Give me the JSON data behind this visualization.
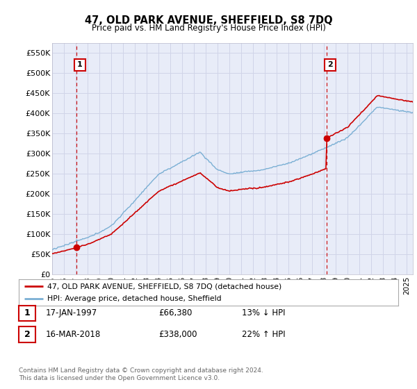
{
  "title": "47, OLD PARK AVENUE, SHEFFIELD, S8 7DQ",
  "subtitle": "Price paid vs. HM Land Registry's House Price Index (HPI)",
  "ylim": [
    0,
    575000
  ],
  "yticks": [
    0,
    50000,
    100000,
    150000,
    200000,
    250000,
    300000,
    350000,
    400000,
    450000,
    500000,
    550000
  ],
  "ytick_labels": [
    "£0",
    "£50K",
    "£100K",
    "£150K",
    "£200K",
    "£250K",
    "£300K",
    "£350K",
    "£400K",
    "£450K",
    "£500K",
    "£550K"
  ],
  "xlim_start": 1995.0,
  "xlim_end": 2025.5,
  "xticks": [
    1995,
    1996,
    1997,
    1998,
    1999,
    2000,
    2001,
    2002,
    2003,
    2004,
    2005,
    2006,
    2007,
    2008,
    2009,
    2010,
    2011,
    2012,
    2013,
    2014,
    2015,
    2016,
    2017,
    2018,
    2019,
    2020,
    2021,
    2022,
    2023,
    2024,
    2025
  ],
  "sale1_x": 1997.04,
  "sale1_y": 66380,
  "sale1_label": "1",
  "sale2_x": 2018.21,
  "sale2_y": 338000,
  "sale2_label": "2",
  "property_line_color": "#cc0000",
  "hpi_line_color": "#7aafd4",
  "grid_color": "#d0d4e8",
  "bg_color": "#e8ecf8",
  "annotation_box_color": "#cc0000",
  "legend_line1": "47, OLD PARK AVENUE, SHEFFIELD, S8 7DQ (detached house)",
  "legend_line2": "HPI: Average price, detached house, Sheffield",
  "table_row1_num": "1",
  "table_row1_date": "17-JAN-1997",
  "table_row1_price": "£66,380",
  "table_row1_hpi": "13% ↓ HPI",
  "table_row2_num": "2",
  "table_row2_date": "16-MAR-2018",
  "table_row2_price": "£338,000",
  "table_row2_hpi": "22% ↑ HPI",
  "footer": "Contains HM Land Registry data © Crown copyright and database right 2024.\nThis data is licensed under the Open Government Licence v3.0."
}
